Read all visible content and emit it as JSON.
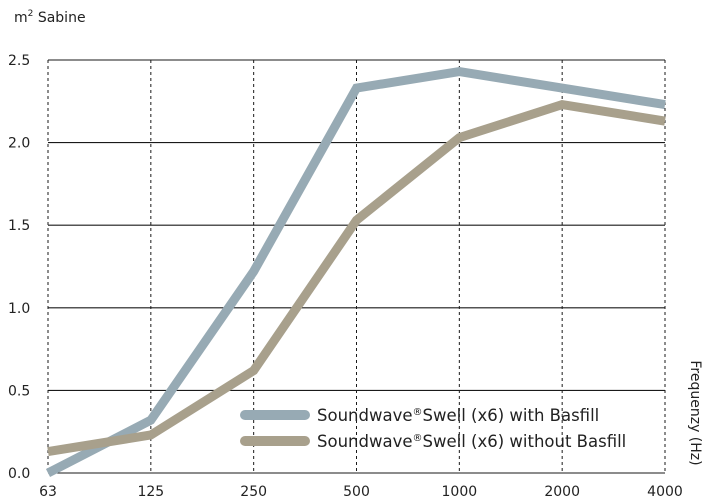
{
  "chart_data": {
    "type": "line",
    "ylabel_prefix": "m",
    "ylabel_sup": "2",
    "ylabel_suffix": " Sabine",
    "xlabel": "Frequenzy (Hz)",
    "categories": [
      "63",
      "125",
      "250",
      "500",
      "1000",
      "2000",
      "4000"
    ],
    "y_ticks": [
      "0.0",
      "0.5",
      "1.0",
      "1.5",
      "2.0",
      "2.5"
    ],
    "ylim": [
      0,
      2.5
    ],
    "grid": {
      "horizontal": "solid",
      "vertical": "dashed"
    },
    "legend_position": "bottom-right",
    "series": [
      {
        "name": "Soundwave®Swell (x6) with Basfill",
        "name_parts": [
          "Soundwave",
          "®",
          "Swell (x6) with Basfill"
        ],
        "color": "#97aab4",
        "values": [
          0.0,
          0.32,
          1.22,
          2.33,
          2.43,
          2.33,
          2.23
        ]
      },
      {
        "name": "Soundwave®Swell (x6) without Basfill",
        "name_parts": [
          "Soundwave",
          "®",
          "Swell (x6) without Basfill"
        ],
        "color": "#a8a08c",
        "values": [
          0.13,
          0.23,
          0.62,
          1.53,
          2.03,
          2.23,
          2.13
        ]
      }
    ]
  }
}
